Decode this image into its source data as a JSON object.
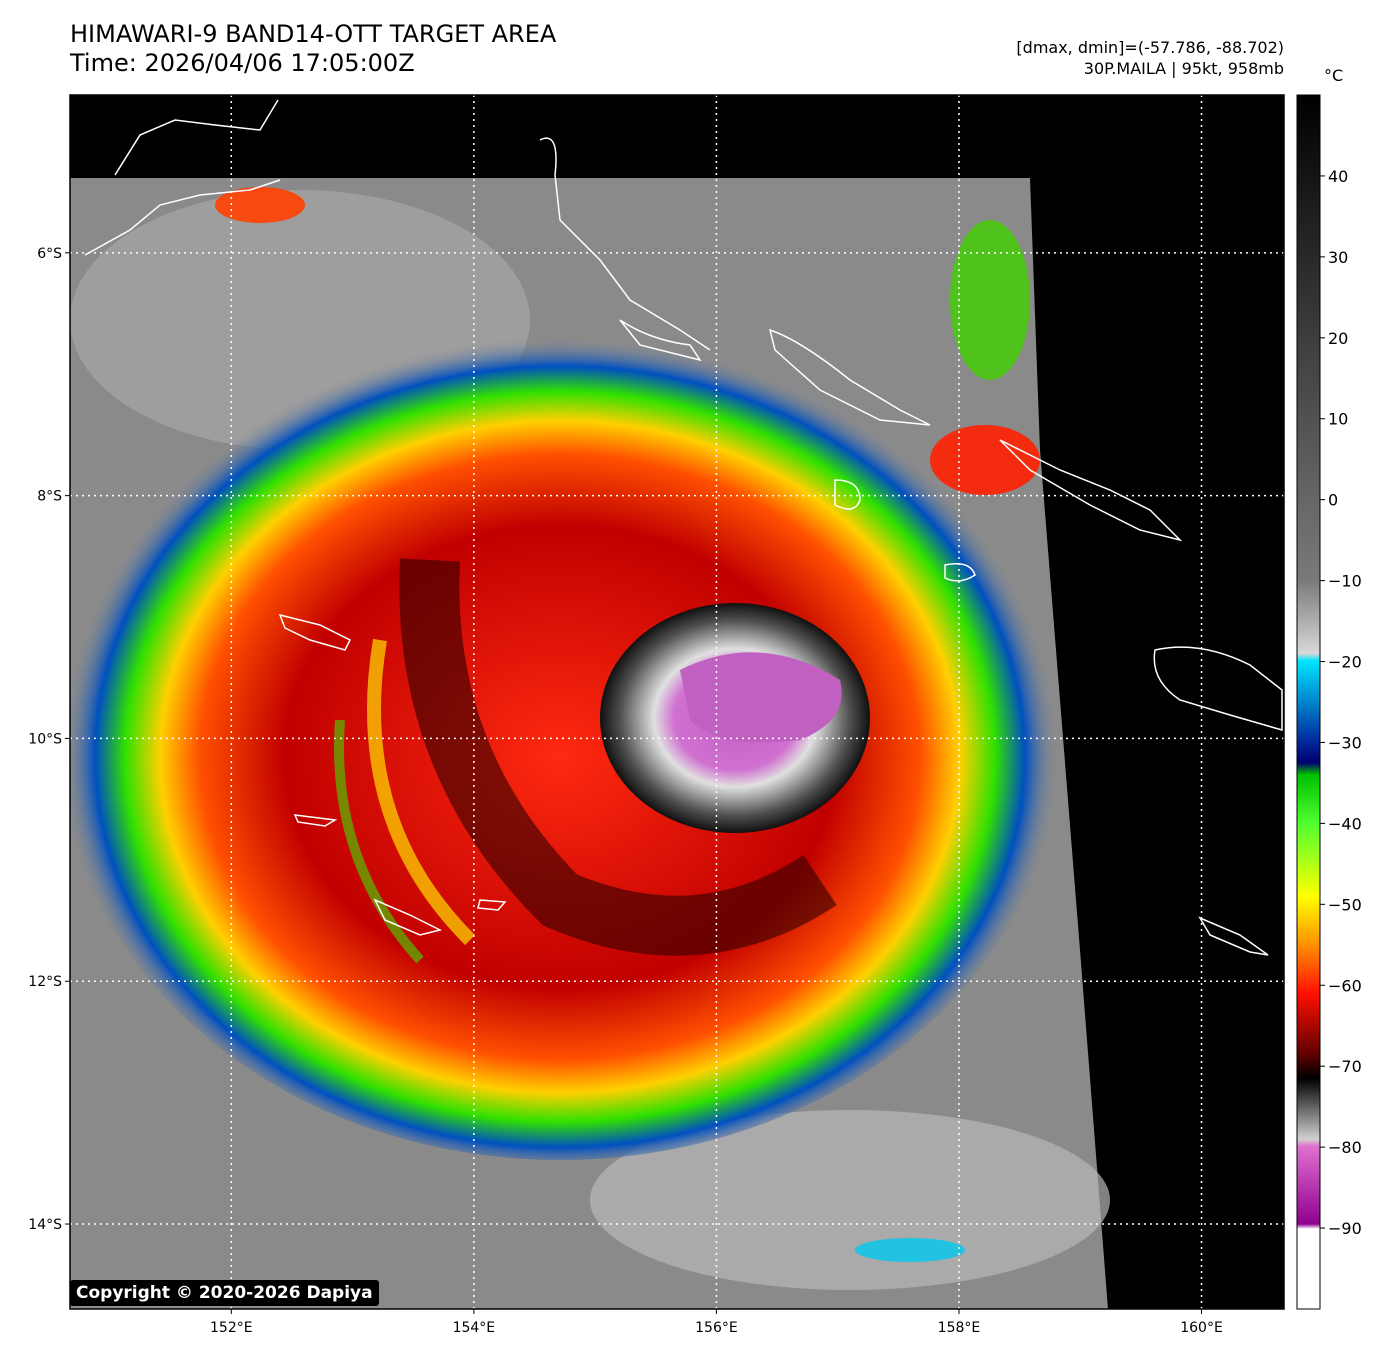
{
  "header": {
    "title_line1": "HIMAWARI-9 BAND14-OTT TARGET AREA",
    "title_line2": "Time: 2026/04/06 17:05:00Z",
    "range_text": "[dmax, dmin]=(-57.786, -88.702)",
    "storm_text": "30P.MAILA | 95kt, 958mb"
  },
  "map": {
    "lon_labels": [
      "152°E",
      "154°E",
      "156°E",
      "158°E",
      "160°E"
    ],
    "lat_labels": [
      "6°S",
      "8°S",
      "10°S",
      "12°S",
      "14°S"
    ],
    "lon_values": [
      152,
      154,
      156,
      158,
      160
    ],
    "lat_values": [
      -6,
      -8,
      -10,
      -12,
      -14
    ],
    "lon_range": [
      150.67,
      160.68
    ],
    "lat_range": [
      -14.7,
      -4.7
    ]
  },
  "colorbar": {
    "unit": "°C",
    "tick_labels": [
      "40",
      "30",
      "20",
      "10",
      "0",
      "−10",
      "−20",
      "−30",
      "−40",
      "−50",
      "−60",
      "−70",
      "−80",
      "−90"
    ],
    "tick_values": [
      40,
      30,
      20,
      10,
      0,
      -10,
      -20,
      -30,
      -40,
      -50,
      -60,
      -70,
      -80,
      -90
    ],
    "range": [
      -100,
      50
    ]
  },
  "copyright": "Copyright © 2020-2026 Dapiya",
  "colors": {
    "background_space": "#000000",
    "coastline": "#ffffff",
    "grid": "#ffffff",
    "eye_purple": "#c060c0"
  }
}
